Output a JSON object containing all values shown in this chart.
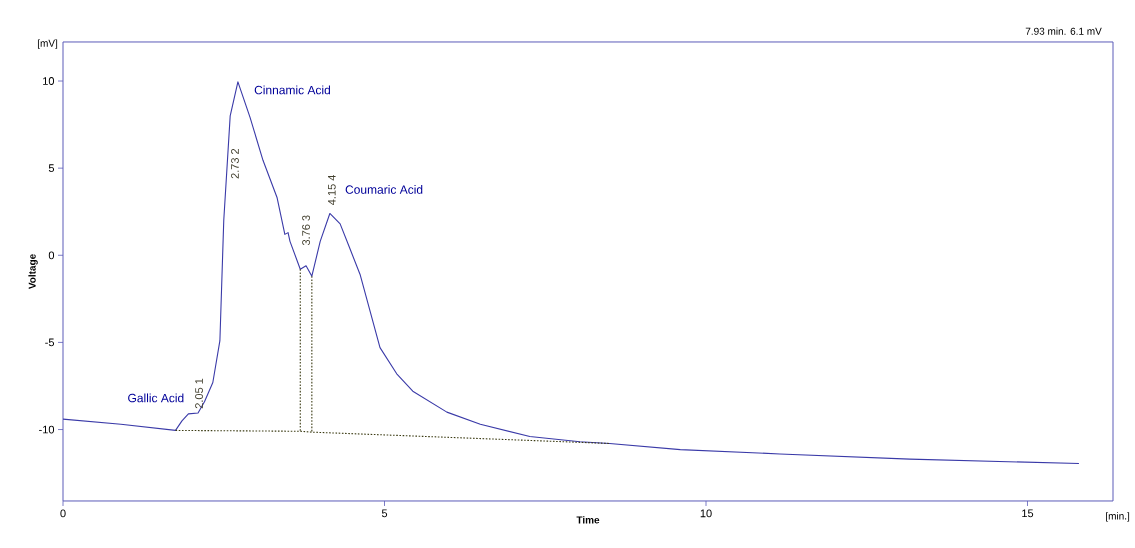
{
  "chart_data": {
    "type": "line",
    "xlabel": "Time",
    "ylabel": "Voltage",
    "xlim": [
      0,
      16.33
    ],
    "ylim": [
      -14.1,
      12.24
    ],
    "xticks": [
      0,
      5,
      10,
      15
    ],
    "yticks": [
      -10,
      -5,
      0,
      5,
      10
    ],
    "grid": false,
    "series": [
      {
        "color": "#3a3aa8",
        "line_style": "solid",
        "x": [
          0,
          0.9,
          1.75,
          1.85,
          1.95,
          2.1,
          2.2,
          2.33,
          2.44,
          2.5,
          2.6,
          2.72,
          2.91,
          3.11,
          3.33,
          3.45,
          3.5,
          3.53,
          3.69,
          3.78,
          3.87,
          4.0,
          4.15,
          4.31,
          4.46,
          4.62,
          4.93,
          5.19,
          5.44,
          5.97,
          6.49,
          7.26,
          8.04,
          8.5,
          9.6,
          11.15,
          13.17,
          15.8
        ],
        "values": [
          -9.4,
          -9.7,
          -10.05,
          -9.5,
          -9.1,
          -9.05,
          -8.4,
          -7.3,
          -4.9,
          2.0,
          8.0,
          9.95,
          7.9,
          5.45,
          3.3,
          1.2,
          1.3,
          0.8,
          -0.8,
          -0.6,
          -1.2,
          0.8,
          2.4,
          1.8,
          0.4,
          -1.1,
          -5.3,
          -6.8,
          -7.8,
          -9.0,
          -9.7,
          -10.4,
          -10.7,
          -10.8,
          -11.15,
          -11.4,
          -11.7,
          -11.95
        ]
      },
      {
        "color": "#3c3c14",
        "line_style": "dotted",
        "x": [
          1.75,
          3.69,
          3.87,
          8.5
        ],
        "values": [
          -10.05,
          -10.1,
          -10.15,
          -10.8
        ]
      },
      {
        "color": "#3c3c14",
        "line_style": "dotted",
        "x": [
          3.69,
          3.69
        ],
        "values": [
          -0.8,
          -10.1
        ]
      },
      {
        "color": "#3c3c14",
        "line_style": "dotted",
        "x": [
          3.87,
          3.87
        ],
        "values": [
          -1.2,
          -10.15
        ]
      }
    ],
    "annotations": [
      {
        "text": "Gallic Acid",
        "x": 1.95,
        "y": -9.1
      },
      {
        "text": "Cinnamic Acid",
        "x": 2.72,
        "y": 9.95
      },
      {
        "text": "Coumaric Acid",
        "x": 4.15,
        "y": 2.4
      },
      {
        "text": "2.05 1",
        "x": 2.1,
        "y": -9.05
      },
      {
        "text": "2.73 2",
        "x": 2.55,
        "y": 5.0
      },
      {
        "text": "3.76 3",
        "x": 3.78,
        "y": -0.6
      },
      {
        "text": "4.15 4",
        "x": 4.15,
        "y": 2.4
      },
      "7.93 min.  6.1 mV",
      "[mV]",
      "[min.]"
    ]
  }
}
